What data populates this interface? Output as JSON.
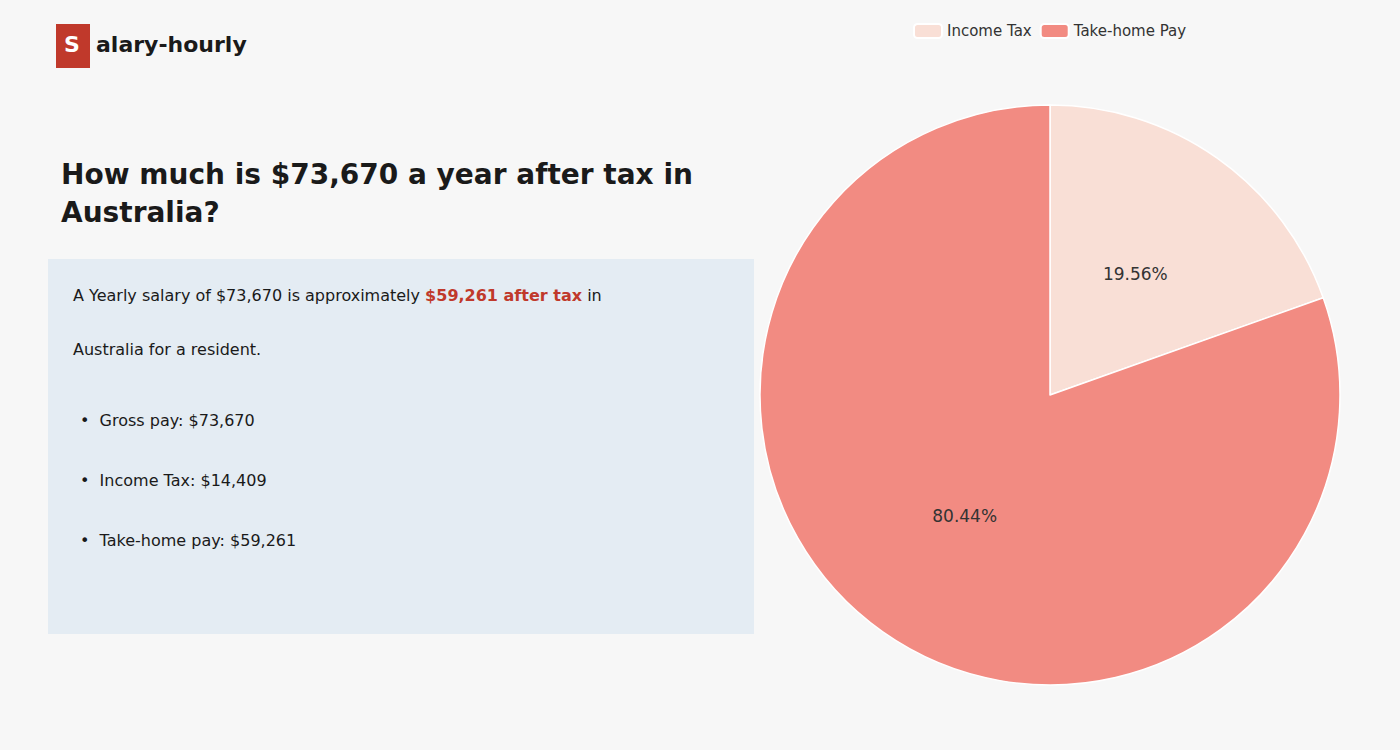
{
  "chart_data": {
    "type": "pie",
    "title": "How much is $73,670 a year after tax in\nAustralia?",
    "categories": [
      "Income Tax",
      "Take-home Pay"
    ],
    "values": [
      19.56,
      80.44
    ],
    "value_labels": [
      "19.56%",
      "80.44%"
    ],
    "colors": [
      "#f9dfd6",
      "#f28b82"
    ],
    "data_labels": true,
    "legend": "top",
    "annotations": [
      "S",
      "alary-hourly",
      "A Yearly salary of $73,670 is approximately ",
      "$59,261 after tax",
      " in",
      "Australia for a resident.",
      "•  Gross pay: $73,670",
      "•  Income Tax: $14,409",
      "•  Take-home pay: $59,261"
    ]
  }
}
